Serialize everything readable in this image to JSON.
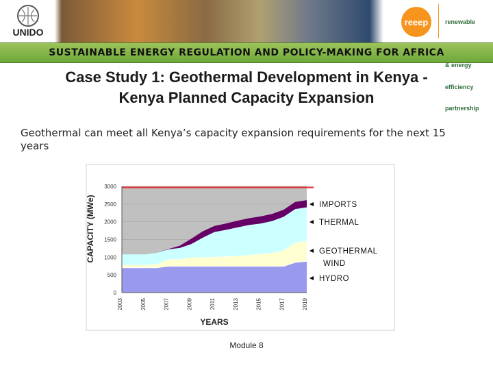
{
  "header": {
    "unido_logo_text": "UNIDO",
    "reeep_logo_text": "reeep",
    "reeep_tagline": [
      "renewable",
      "energy",
      "& energy",
      "efficiency",
      "partnership"
    ],
    "program_title": "SUSTAINABLE ENERGY REGULATION AND POLICY-MAKING FOR AFRICA"
  },
  "slide": {
    "title_line1": "Case Study 1: Geothermal Development in Kenya -",
    "title_line2": "Kenya Planned Capacity Expansion",
    "body": "Geothermal can meet all Kenya’s capacity expansion requirements for the next 15 years",
    "footer": "Module 8"
  },
  "chart_data": {
    "type": "area",
    "stacked": true,
    "xlabel": "YEARS",
    "ylabel": "CAPACITY (MWe)",
    "ylim": [
      0,
      3000
    ],
    "yticks": [
      "0",
      "500",
      "1000",
      "1500",
      "2000",
      "2500",
      "3000"
    ],
    "x": [
      2003,
      2004,
      2005,
      2006,
      2007,
      2008,
      2009,
      2010,
      2011,
      2012,
      2013,
      2014,
      2015,
      2016,
      2017,
      2018,
      2019
    ],
    "xticks": [
      "2003",
      "2005",
      "2007",
      "2009",
      "2011",
      "2013",
      "2015",
      "2017",
      "2019"
    ],
    "reference_line": {
      "value": 2970,
      "color": "#e03030"
    },
    "series": [
      {
        "name": "HYDRO",
        "color": "#9999ee",
        "values": [
          700,
          700,
          700,
          700,
          740,
          740,
          740,
          740,
          740,
          740,
          740,
          740,
          740,
          740,
          740,
          850,
          880
        ]
      },
      {
        "name": "WIND",
        "color": "#ffffd0",
        "values": [
          0,
          0,
          0,
          0,
          0,
          0,
          0,
          0,
          0,
          0,
          0,
          0,
          0,
          0,
          0,
          0,
          0
        ]
      },
      {
        "name": "GEOTHERMAL",
        "color": "#ffffd0",
        "values": [
          80,
          80,
          80,
          100,
          200,
          200,
          250,
          260,
          270,
          280,
          300,
          320,
          350,
          380,
          450,
          560,
          580
        ]
      },
      {
        "name": "THERMAL",
        "color": "#ccffff",
        "values": [
          300,
          300,
          300,
          320,
          280,
          320,
          380,
          550,
          700,
          750,
          800,
          850,
          860,
          900,
          950,
          950,
          950
        ]
      },
      {
        "name": "IMPORTS",
        "color": "#660066",
        "values": [
          0,
          0,
          0,
          0,
          10,
          60,
          150,
          180,
          170,
          180,
          190,
          190,
          200,
          200,
          200,
          200,
          200
        ]
      }
    ],
    "legend": [
      "IMPORTS",
      "THERMAL",
      "GEOTHERMAL",
      "WIND",
      "HYDRO"
    ],
    "legend_position": "right",
    "plot_background": "#c0c0c0",
    "grid": true
  }
}
